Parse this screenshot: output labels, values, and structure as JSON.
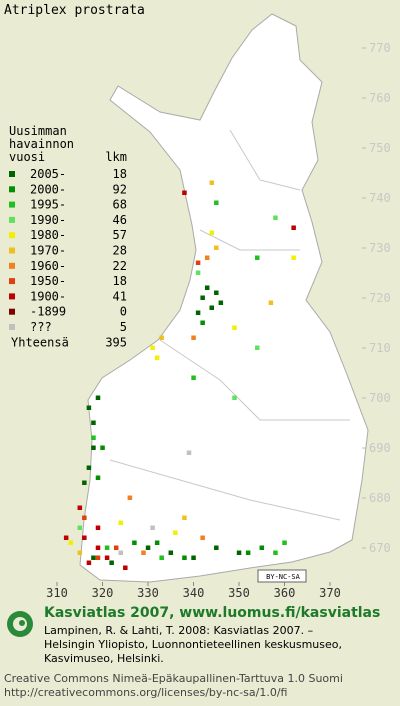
{
  "title": "Atriplex prostrata",
  "xlim": [
    310,
    370
  ],
  "ylim": [
    670,
    770
  ],
  "xticks": [
    310,
    320,
    330,
    340,
    350,
    360,
    370
  ],
  "yticks": [
    670,
    680,
    690,
    700,
    710,
    720,
    730,
    740,
    750,
    760,
    770
  ],
  "legend": {
    "heading": [
      "Uusimman",
      "havainnon",
      "vuosi"
    ],
    "count_heading": "lkm",
    "items": [
      {
        "label": "2005-",
        "count": 18,
        "color": "#006400"
      },
      {
        "label": "2000-",
        "count": 92,
        "color": "#009000"
      },
      {
        "label": "1995-",
        "count": 68,
        "color": "#20c020"
      },
      {
        "label": "1990-",
        "count": 46,
        "color": "#60e060"
      },
      {
        "label": "1980-",
        "count": 57,
        "color": "#f0f000"
      },
      {
        "label": "1970-",
        "count": 28,
        "color": "#f0c020"
      },
      {
        "label": "1960-",
        "count": 22,
        "color": "#f08020"
      },
      {
        "label": "1950-",
        "count": 18,
        "color": "#e04010"
      },
      {
        "label": "1900-",
        "count": 41,
        "color": "#c00000"
      },
      {
        "label": "-1899",
        "count": 0,
        "color": "#800000"
      },
      {
        "label": "???",
        "count": 5,
        "color": "#c0c0c0"
      }
    ],
    "total_label": "Yhteensä",
    "total": 395
  },
  "records": [
    [
      342,
      720,
      0
    ],
    [
      343,
      722,
      0
    ],
    [
      344,
      718,
      0
    ],
    [
      345,
      721,
      0
    ],
    [
      341,
      717,
      0
    ],
    [
      346,
      719,
      0
    ],
    [
      317,
      698,
      0
    ],
    [
      318,
      695,
      0
    ],
    [
      318,
      690,
      0
    ],
    [
      317,
      686,
      0
    ],
    [
      316,
      683,
      0
    ],
    [
      319,
      700,
      0
    ],
    [
      318,
      668,
      0
    ],
    [
      322,
      667,
      0
    ],
    [
      330,
      670,
      0
    ],
    [
      335,
      669,
      0
    ],
    [
      340,
      668,
      0
    ],
    [
      345,
      670,
      0
    ],
    [
      350,
      669,
      0
    ],
    [
      320,
      690,
      1
    ],
    [
      319,
      684,
      1
    ],
    [
      342,
      715,
      1
    ],
    [
      352,
      669,
      1
    ],
    [
      355,
      670,
      1
    ],
    [
      332,
      671,
      1
    ],
    [
      338,
      668,
      1
    ],
    [
      327,
      671,
      1
    ],
    [
      345,
      739,
      2
    ],
    [
      354,
      728,
      2
    ],
    [
      340,
      704,
      2
    ],
    [
      318,
      692,
      2
    ],
    [
      321,
      670,
      2
    ],
    [
      333,
      668,
      2
    ],
    [
      358,
      669,
      2
    ],
    [
      360,
      671,
      2
    ],
    [
      341,
      725,
      3
    ],
    [
      354,
      710,
      3
    ],
    [
      358,
      736,
      3
    ],
    [
      349,
      700,
      3
    ],
    [
      315,
      674,
      3
    ],
    [
      344,
      733,
      4
    ],
    [
      349,
      714,
      4
    ],
    [
      332,
      708,
      4
    ],
    [
      331,
      710,
      4
    ],
    [
      362,
      728,
      4
    ],
    [
      324,
      675,
      4
    ],
    [
      336,
      673,
      4
    ],
    [
      313,
      671,
      4
    ],
    [
      344,
      743,
      5
    ],
    [
      345,
      730,
      5
    ],
    [
      357,
      719,
      5
    ],
    [
      333,
      712,
      5
    ],
    [
      338,
      676,
      5
    ],
    [
      315,
      669,
      5
    ],
    [
      343,
      728,
      6
    ],
    [
      340,
      712,
      6
    ],
    [
      326,
      680,
      6
    ],
    [
      342,
      672,
      6
    ],
    [
      329,
      669,
      6
    ],
    [
      316,
      676,
      7
    ],
    [
      319,
      668,
      7
    ],
    [
      323,
      670,
      7
    ],
    [
      341,
      727,
      7
    ],
    [
      315,
      678,
      8
    ],
    [
      316,
      672,
      8
    ],
    [
      317,
      667,
      8
    ],
    [
      319,
      670,
      8
    ],
    [
      321,
      668,
      8
    ],
    [
      325,
      666,
      8
    ],
    [
      338,
      741,
      8
    ],
    [
      362,
      734,
      8
    ],
    [
      319,
      674,
      8
    ],
    [
      312,
      672,
      8
    ],
    [
      339,
      689,
      10
    ],
    [
      331,
      674,
      10
    ],
    [
      324,
      669,
      10
    ]
  ],
  "license_badge": "BY-NC-SA",
  "footer": {
    "heading": "Kasviatlas 2007, www.luomus.fi/kasviatlas",
    "citation": [
      "Lampinen, R. & Lahti, T. 2008: Kasviatlas 2007. –",
      "Helsingin Yliopisto, Luonnontieteellinen keskusmuseo,",
      "Kasvimuseo, Helsinki."
    ],
    "license": [
      "Creative Commons Nimeä-Epäkaupallinen-Tarttuva 1.0 Suomi",
      "http://creativecommons.org/licenses/by-nc-sa/1.0/fi"
    ]
  }
}
